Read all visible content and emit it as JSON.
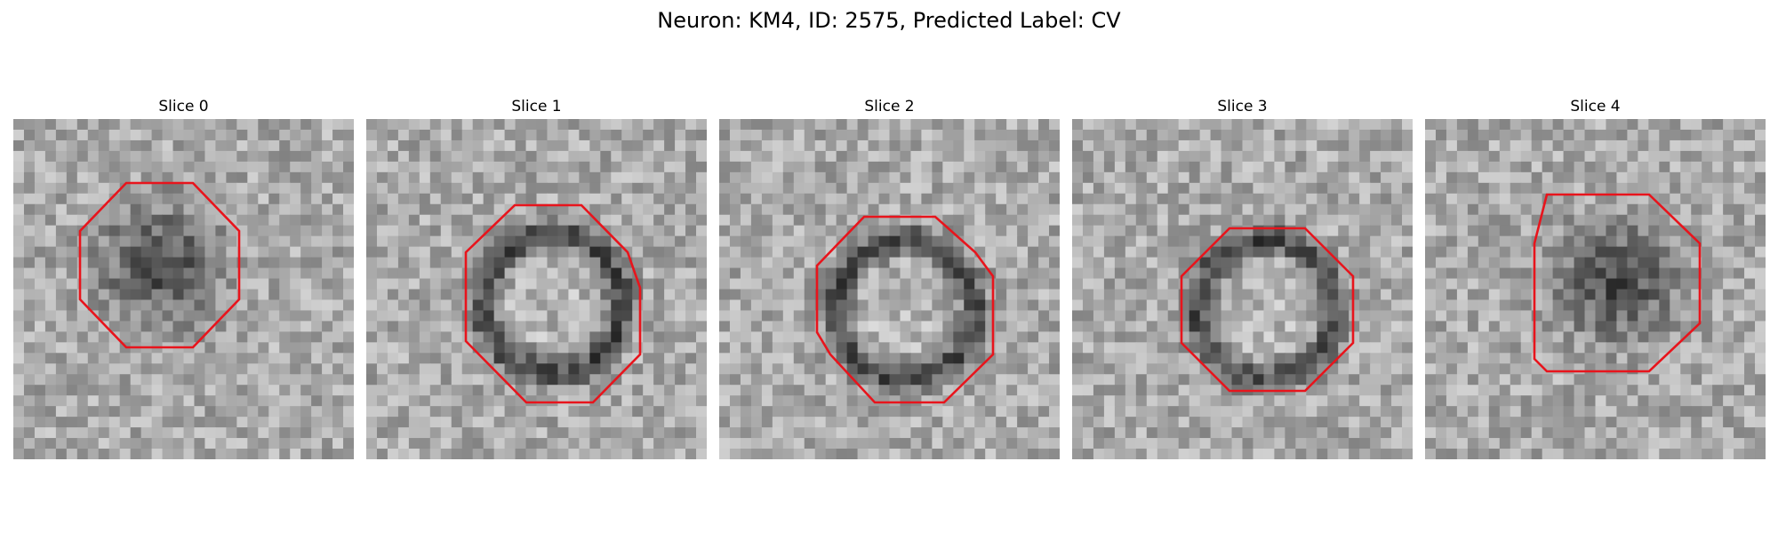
{
  "figure": {
    "title": "Neuron: KM4, ID: 2575, Predicted Label: CV",
    "roi_color": "#e8141c"
  },
  "panels": [
    {
      "title": "Slice 0",
      "pattern": "blob",
      "seed": 11
    },
    {
      "title": "Slice 1",
      "pattern": "ring",
      "seed": 23
    },
    {
      "title": "Slice 2",
      "pattern": "ring",
      "seed": 37
    },
    {
      "title": "Slice 3",
      "pattern": "ring",
      "seed": 51
    },
    {
      "title": "Slice 4",
      "pattern": "blob",
      "seed": 67
    }
  ]
}
